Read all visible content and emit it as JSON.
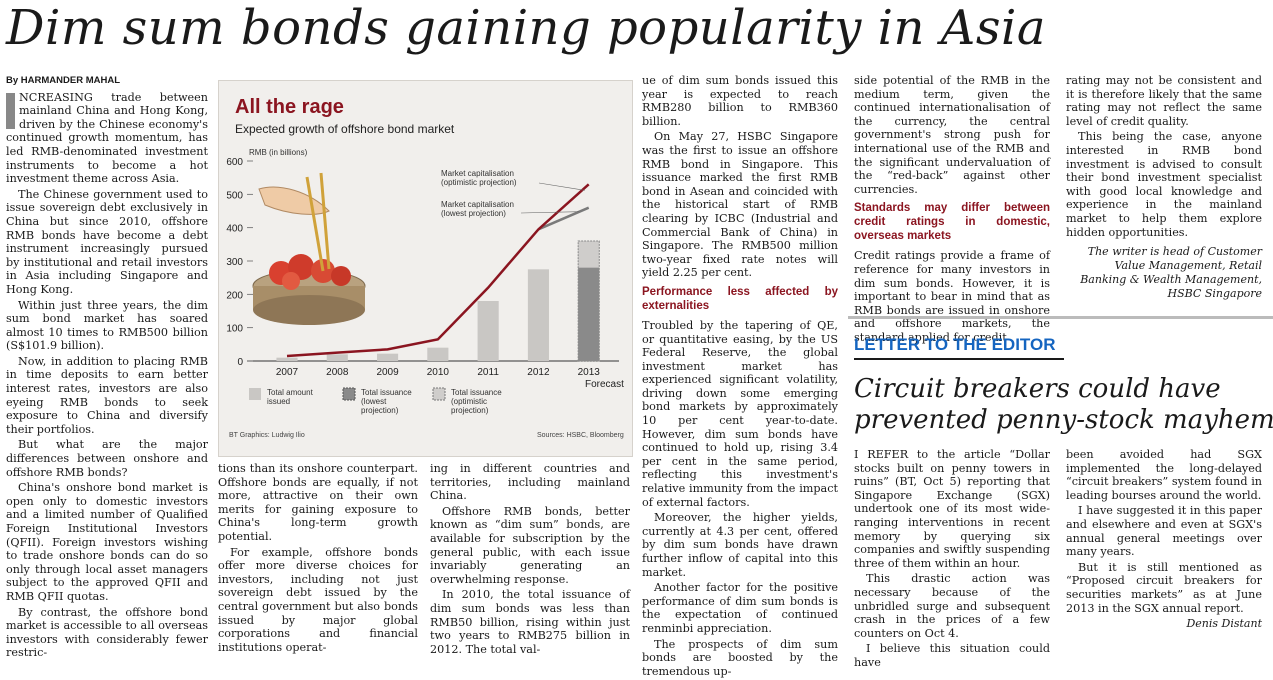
{
  "headline": "Dim sum bonds gaining popularity in Asia",
  "byline": "By HARMANDER MAHAL",
  "col1": [
    "NCREASING trade between mainland China and Hong Kong, driven by the Chinese economy's continued growth momentum, has led RMB-denominated investment instruments to become a hot investment theme across Asia.",
    "The Chinese government used to issue sovereign debt exclusively in China but since 2010, offshore RMB bonds have become a debt instrument increasingly pursued by institutional and retail investors in Asia including Singapore and Hong Kong.",
    "Within just three years, the dim sum bond market has soared almost 10 times to RMB500 billion (S$101.9 billion).",
    "Now, in addition to placing RMB in time deposits to earn better interest rates, investors are also eyeing RMB bonds to seek exposure to China and diversify their portfolios.",
    "But what are the major differences between onshore and offshore RMB bonds?",
    "China's onshore bond market is open only to domestic investors and a limited number of Qualified Foreign Institutional Investors (QFII). Foreign investors wishing to trade onshore bonds can do so only through local asset managers subject to the approved QFII and RMB QFII quotas.",
    "By contrast, the offshore bond market is accessible to all overseas investors with considerably fewer restric-"
  ],
  "col2": [
    "tions than its onshore counterpart. Offshore bonds are equally, if not more, attractive on their own merits for gaining exposure to China's long-term growth potential.",
    "For example, offshore bonds offer more diverse choices for investors, including not just sovereign debt issued by the central government but also bonds issued by major global corporations and financial institutions operat-"
  ],
  "col3": [
    "ing in different countries and territories, including mainland China.",
    "Offshore RMB bonds, better known as “dim sum” bonds, are available for subscription by the general public, with each issue invariably generating an overwhelming response.",
    "In 2010, the total issuance of dim sum bonds was less than RMB50 billion, rising within just two years to RMB275 billion in 2012. The total val-"
  ],
  "col4a": [
    "ue of dim sum bonds issued this year is expected to reach RMB280 billion to RMB360 billion.",
    "On May 27, HSBC Singapore was the first to issue an offshore RMB bond in Singapore. This issuance marked the first RMB bond in Asean and coincided with the historical start of RMB clearing by ICBC (Industrial and Commercial Bank of China) in Singapore. The RMB500 million two-year fixed rate notes will yield 2.25 per cent."
  ],
  "subhead1": "Performance less affected by externalities",
  "col4b": [
    "Troubled by the tapering of QE, or quantitative easing, by the US Federal Reserve, the global investment market has experienced significant volatility, driving down some emerging bond markets by approximately 10 per cent year-to-date. However, dim sum bonds have continued to hold up, rising 3.4 per cent in the same period, reflecting this investment's relative immunity from the impact of external factors.",
    "Moreover, the higher yields, currently at 4.3 per cent, offered by dim sum bonds have drawn further inflow of capital into this market.",
    "Another factor for the positive performance of dim sum bonds is the expectation of continued renminbi appreciation.",
    "The prospects of dim sum bonds are boosted by the tremendous up-"
  ],
  "col5a": [
    "side potential of the RMB in the medium term, given the continued internationalisation of the currency, the central government's strong push for international use of the RMB and the significant undervaluation of the “red-back” against other currencies."
  ],
  "subhead2": "Standards may differ between credit ratings in domestic, overseas markets",
  "col5b": [
    "Credit ratings provide a frame of reference for many investors in dim sum bonds. However, it is important to bear in mind that as RMB bonds are issued in onshore and offshore markets, the standard applied for credit"
  ],
  "col6": [
    "rating may not be consistent and it is therefore likely that the same rating may not reflect the same level of credit quality.",
    "This being the case, anyone interested in RMB bond investment is advised to consult their bond investment specialist with good local knowledge and experience in the mainland market to help them explore hidden opportunities."
  ],
  "writer_note": "The writer is head of Customer Value Management, Retail Banking & Wealth Management, HSBC Singapore",
  "letter": {
    "label": "LETTER TO THE EDITOR",
    "headline_line1": "Circuit breakers could have",
    "headline_line2": "prevented penny-stock mayhem",
    "col1": [
      "I REFER to the article “Dollar stocks built on penny towers in ruins” (BT, Oct 5) reporting that Singapore Exchange (SGX) undertook one of its most wide-ranging interventions in recent memory by querying six companies and swiftly suspending three of them within an hour.",
      "This drastic action was necessary because of the unbridled surge and subsequent crash in the prices of a few counters on Oct 4.",
      "I believe this situation could have"
    ],
    "col2": [
      "been avoided had SGX implemented the long-delayed “circuit breakers” system found in leading bourses around the world.",
      "I have suggested it in this paper and elsewhere and even at SGX's annual general meetings over many years.",
      "But it is still mentioned as “Proposed circuit breakers for securities markets” as at June 2013 in the SGX annual report."
    ],
    "signature": "Denis Distant"
  },
  "chart_data": {
    "type": "bar",
    "title": "All the rage",
    "subtitle": "Expected growth of offshore bond market",
    "ylabel": "RMB (in billions)",
    "ylim": [
      0,
      600
    ],
    "yticks": [
      "0",
      "100",
      "200",
      "300",
      "400",
      "500",
      "600"
    ],
    "categories": [
      "2007",
      "2008",
      "2009",
      "2010",
      "2011",
      "2012",
      "2013"
    ],
    "forecast_label": "Forecast",
    "series": [
      {
        "name": "Total amount issued",
        "values": [
          10,
          20,
          22,
          40,
          180,
          275,
          null
        ]
      },
      {
        "name": "Total issuance (lowest projection)",
        "values": [
          null,
          null,
          null,
          null,
          null,
          null,
          280
        ]
      },
      {
        "name": "Total issuance (optimistic projection)",
        "values": [
          null,
          null,
          null,
          null,
          null,
          null,
          360
        ]
      },
      {
        "name": "Market capitalisation (optimistic projection)",
        "x": [
          "2007",
          "2008",
          "2009",
          "2010",
          "2011",
          "2012",
          "2013"
        ],
        "values": [
          15,
          25,
          35,
          65,
          220,
          395,
          530
        ]
      },
      {
        "name": "Market capitalisation (lowest projection)",
        "x": [
          "2012",
          "2013"
        ],
        "values": [
          395,
          460
        ]
      }
    ],
    "legend": [
      "Total amount issued",
      "Total issuance (lowest projection)",
      "Total issuance (optimistic projection)"
    ],
    "annotation_top": "Market capitalisation (optimistic projection)",
    "annotation_low": "Market capitalisation (lowest projection)",
    "credit_left": "BT Graphics: Ludwig Ilio",
    "credit_right": "Sources: HSBC, Bloomberg",
    "colors": {
      "title": "#8b1520",
      "line": "#8b1520",
      "line2": "#7a7a7a",
      "bar": "#c9c7c4",
      "bar_lowest": "#8a8a8a",
      "bar_optimistic": "#cfcdcb"
    }
  }
}
